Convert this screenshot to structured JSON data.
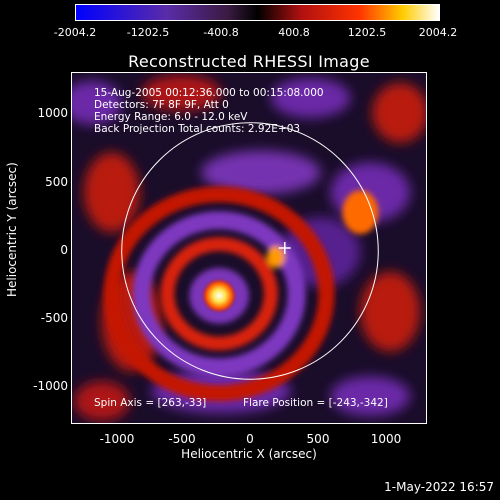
{
  "colorbar": {
    "ticks": [
      "-2004.2",
      "-1202.5",
      "-400.8",
      "400.8",
      "1202.5",
      "2004.2"
    ]
  },
  "image": {
    "title": "Reconstructed RHESSI Image",
    "info_lines": [
      "15-Aug-2005 00:12:36.000 to 00:15:08.000",
      "Detectors: 7F 8F 9F, Att 0",
      "Energy Range: 6.0 - 12.0 keV",
      "Back Projection     Total counts: 2.92E+03"
    ],
    "spin_axis": "Spin Axis = [263,-33]",
    "flare_position": "Flare Position = [-243,-342]",
    "x_ticks": [
      "-1000",
      "-500",
      "0",
      "500",
      "1000"
    ],
    "y_ticks": [
      "1000",
      "500",
      "0",
      "-500",
      "-1000"
    ],
    "xlabel": "Heliocentric X (arcsec)",
    "ylabel": "Heliocentric Y (arcsec)"
  },
  "footer": {
    "date": "1-May-2022 16:57"
  }
}
